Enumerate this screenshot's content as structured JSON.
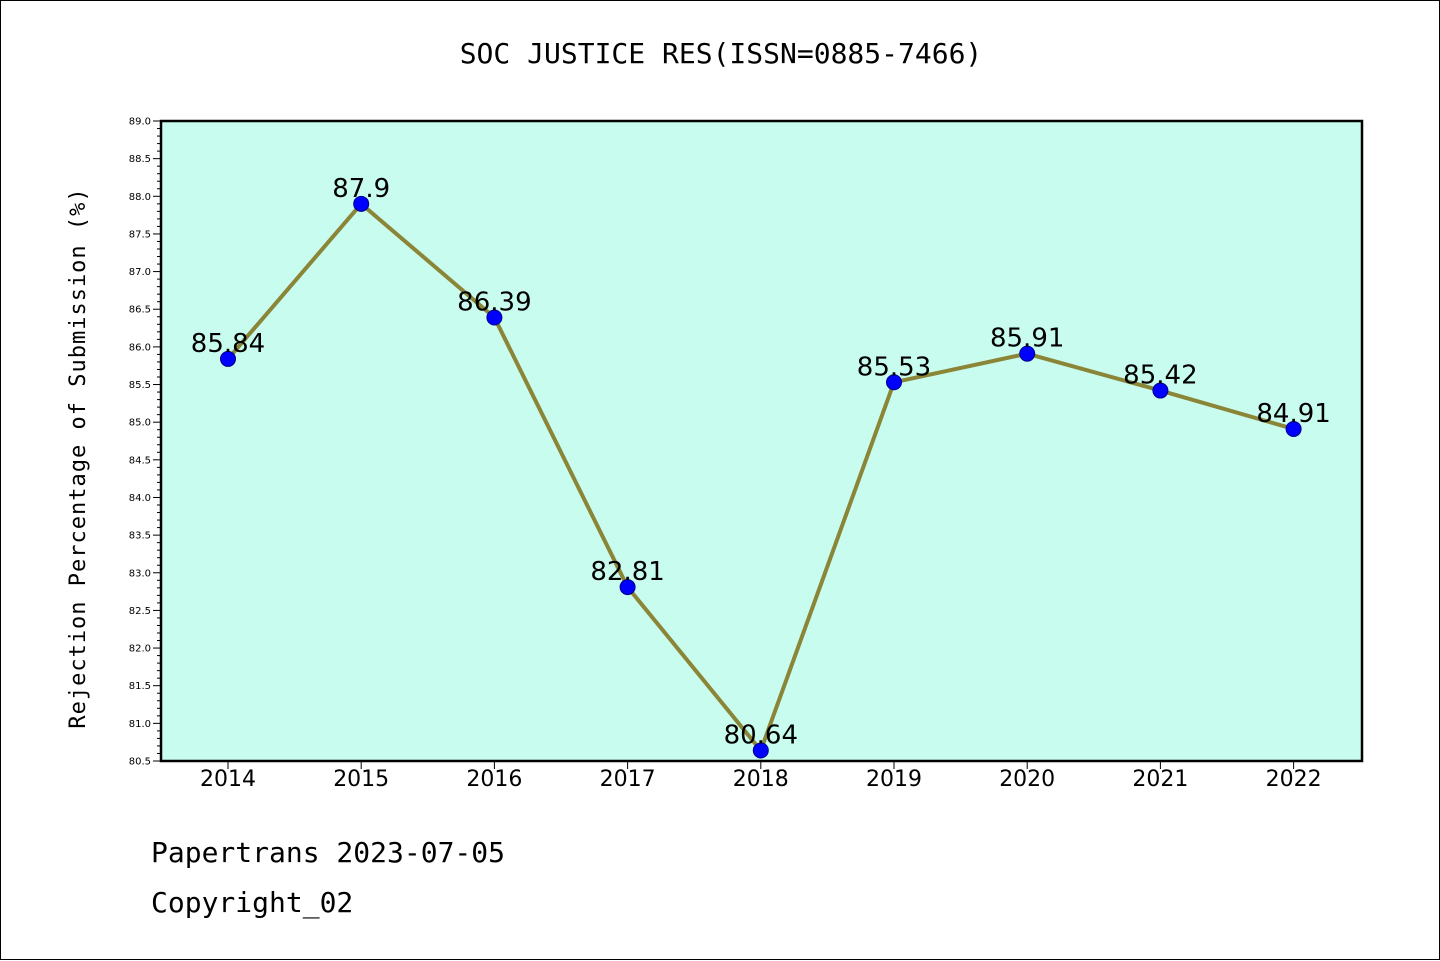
{
  "chart_data": {
    "type": "line",
    "title": "SOC JUSTICE RES(ISSN=0885-7466)",
    "xlabel": "",
    "ylabel": "Rejection Percentage of Submission (%)",
    "categories": [
      "2014",
      "2015",
      "2016",
      "2017",
      "2018",
      "2019",
      "2020",
      "2021",
      "2022"
    ],
    "values": [
      85.84,
      87.9,
      86.39,
      82.81,
      80.64,
      85.53,
      85.91,
      85.42,
      84.91
    ],
    "value_labels": [
      "85.84",
      "87.9",
      "86.39",
      "82.81",
      "80.64",
      "85.53",
      "85.91",
      "85.42",
      "84.91"
    ],
    "ylim": [
      80.5,
      89.0
    ],
    "yticks": [
      "80.5",
      "81.0",
      "81.5",
      "82.0",
      "82.5",
      "83.0",
      "83.5",
      "84.0",
      "84.5",
      "85.0",
      "85.5",
      "86.0",
      "86.5",
      "87.0",
      "87.5",
      "88.0",
      "88.5",
      "89.0"
    ],
    "grid": false,
    "colors": {
      "plot_background": "#c8fcee",
      "line": "#8b8538",
      "marker": "#0000ff"
    }
  },
  "footer": {
    "line1": "Papertrans 2023-07-05",
    "line2": "Copyright_02"
  }
}
